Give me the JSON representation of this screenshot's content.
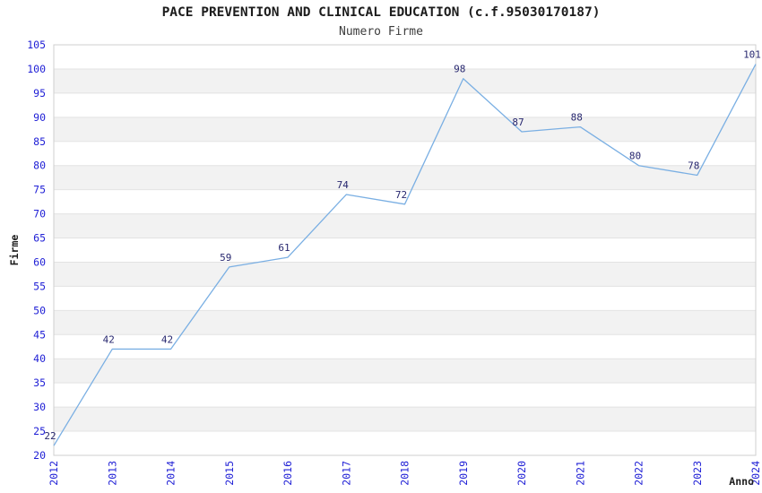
{
  "header": {
    "title": "PACE PREVENTION AND CLINICAL EDUCATION (c.f.95030170187)",
    "subtitle": "Numero Firme"
  },
  "chart_data": {
    "type": "line",
    "title": "PACE PREVENTION AND CLINICAL EDUCATION (c.f.95030170187)",
    "subtitle": "Numero Firme",
    "x": [
      "2012",
      "2013",
      "2014",
      "2015",
      "2016",
      "2017",
      "2018",
      "2019",
      "2020",
      "2021",
      "2022",
      "2023",
      "2024"
    ],
    "series": [
      {
        "name": "Numero Firme",
        "values": [
          22,
          42,
          42,
          59,
          61,
          74,
          72,
          98,
          87,
          88,
          80,
          78,
          101
        ]
      }
    ],
    "xlabel": "Anno",
    "ylabel": "Firme",
    "ylim": [
      20,
      105
    ],
    "ytick_step": 5,
    "grid": "horizontal-alternating-bands",
    "legend_position": "none",
    "data_labels_visible": true
  },
  "colors": {
    "line": "#7aafe3",
    "tick_label": "#2121d6",
    "data_label": "#27276f",
    "band_gray": "#f2f2f2",
    "band_white": "#ffffff",
    "gridline": "#e3e3e3",
    "plot_border": "#cfcfcf",
    "axis_title": "#1c1c1c"
  }
}
